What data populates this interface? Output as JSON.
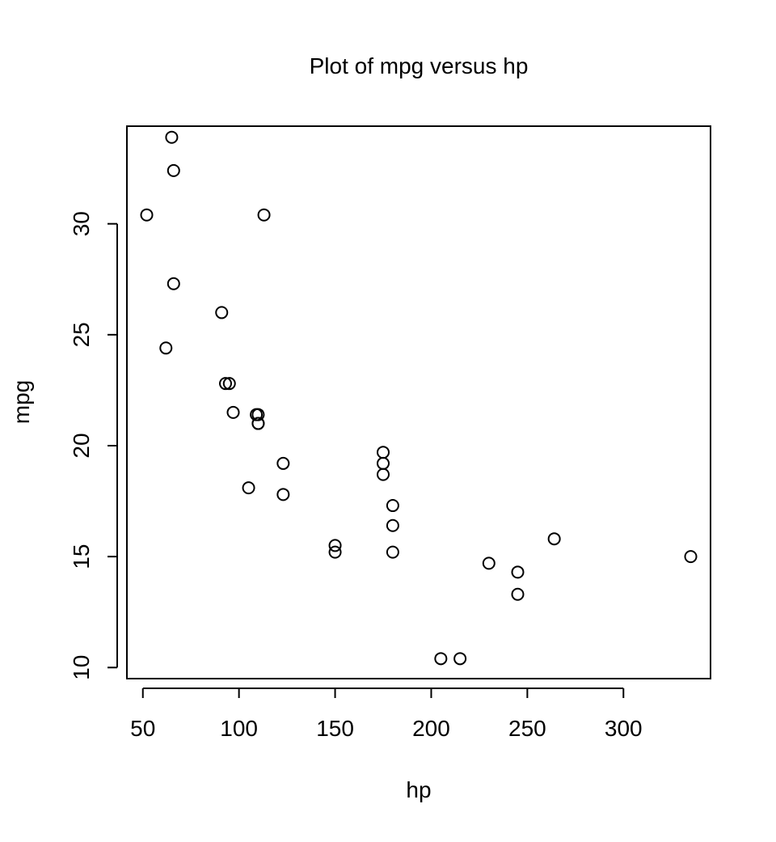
{
  "chart_data": {
    "type": "scatter",
    "title": "Plot of mpg versus hp",
    "xlabel": "hp",
    "ylabel": "mpg",
    "xlim": [
      41.7,
      345.3
    ],
    "ylim": [
      9.5,
      34.4
    ],
    "x_ticks": [
      50,
      100,
      150,
      200,
      250,
      300
    ],
    "y_ticks": [
      10,
      15,
      20,
      25,
      30
    ],
    "grid": false,
    "legend": "none",
    "marker": "open-circle",
    "colors": {
      "marker_stroke": "#000000",
      "axis": "#000000",
      "background": "#ffffff"
    },
    "points": [
      {
        "x": 110,
        "y": 21.0
      },
      {
        "x": 110,
        "y": 21.0
      },
      {
        "x": 93,
        "y": 22.8
      },
      {
        "x": 110,
        "y": 21.4
      },
      {
        "x": 175,
        "y": 18.7
      },
      {
        "x": 105,
        "y": 18.1
      },
      {
        "x": 245,
        "y": 14.3
      },
      {
        "x": 62,
        "y": 24.4
      },
      {
        "x": 95,
        "y": 22.8
      },
      {
        "x": 123,
        "y": 19.2
      },
      {
        "x": 123,
        "y": 17.8
      },
      {
        "x": 180,
        "y": 16.4
      },
      {
        "x": 180,
        "y": 17.3
      },
      {
        "x": 180,
        "y": 15.2
      },
      {
        "x": 205,
        "y": 10.4
      },
      {
        "x": 215,
        "y": 10.4
      },
      {
        "x": 230,
        "y": 14.7
      },
      {
        "x": 66,
        "y": 32.4
      },
      {
        "x": 52,
        "y": 30.4
      },
      {
        "x": 65,
        "y": 33.9
      },
      {
        "x": 97,
        "y": 21.5
      },
      {
        "x": 150,
        "y": 15.5
      },
      {
        "x": 150,
        "y": 15.2
      },
      {
        "x": 245,
        "y": 13.3
      },
      {
        "x": 175,
        "y": 19.2
      },
      {
        "x": 66,
        "y": 27.3
      },
      {
        "x": 91,
        "y": 26.0
      },
      {
        "x": 113,
        "y": 30.4
      },
      {
        "x": 264,
        "y": 15.8
      },
      {
        "x": 175,
        "y": 19.7
      },
      {
        "x": 335,
        "y": 15.0
      },
      {
        "x": 109,
        "y": 21.4
      }
    ]
  }
}
